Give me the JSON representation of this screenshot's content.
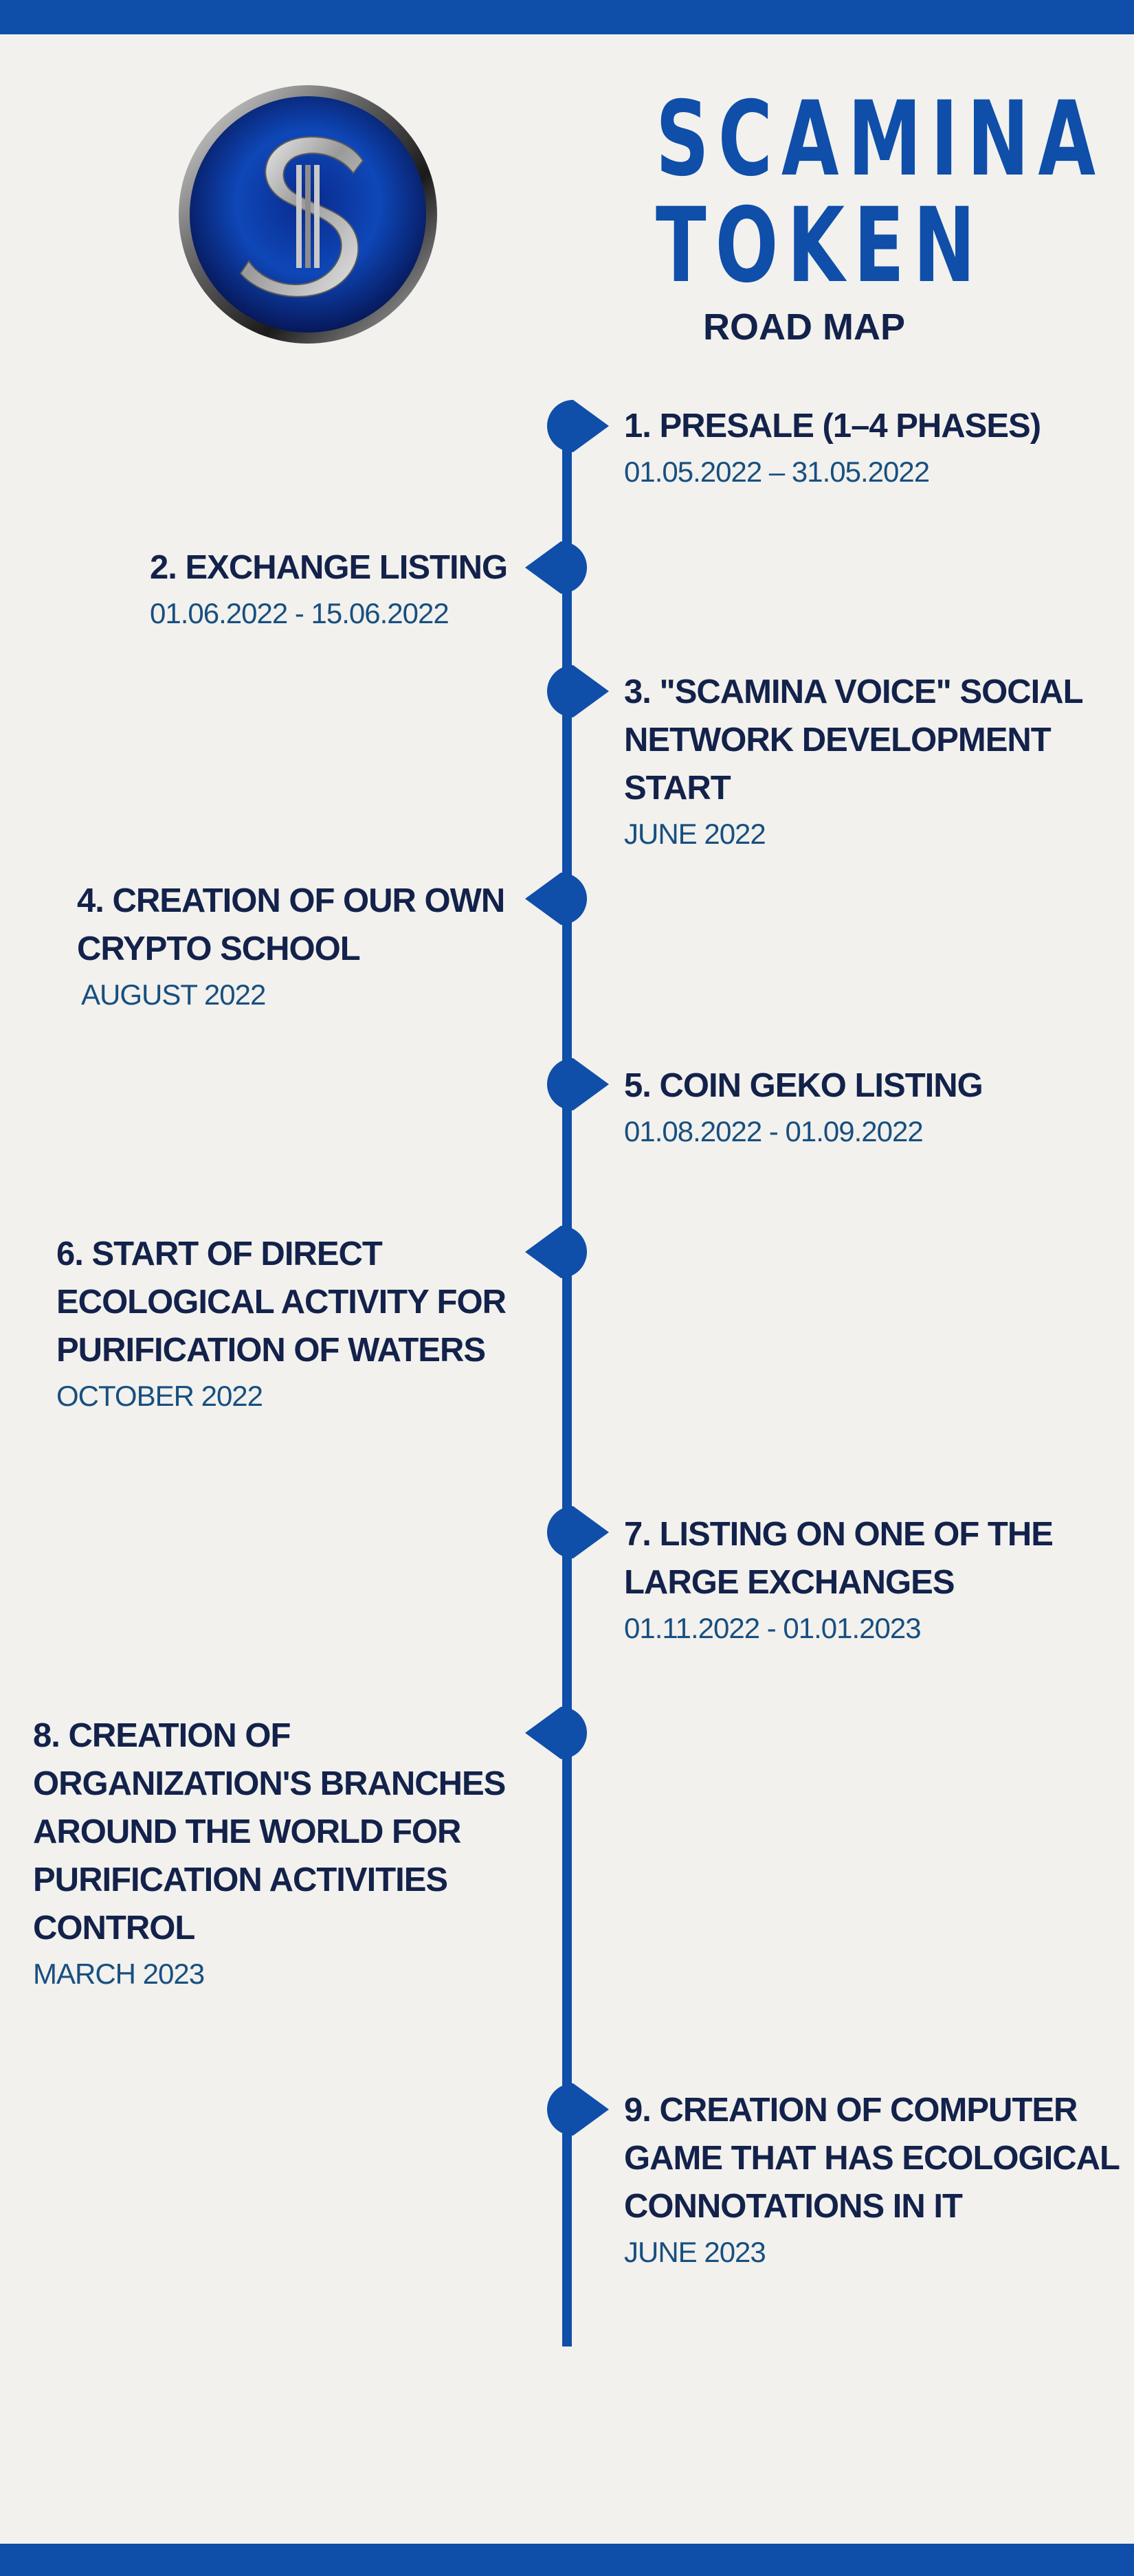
{
  "header": {
    "title_line1": "SCAMINA",
    "title_line2": "TOKEN",
    "subtitle": "ROAD MAP",
    "logo_icon": "scamina-s-coin-logo"
  },
  "colors": {
    "brand_blue": "#0f4ea9",
    "heading_navy": "#13224b",
    "date_blue": "#184f80",
    "background": "#f2f1ed"
  },
  "milestones": [
    {
      "title": "1. PRESALE (1–4 PHASES)",
      "date": "01.05.2022 – 31.05.2022"
    },
    {
      "title": "2. EXCHANGE LISTING",
      "date": "01.06.2022 - 15.06.2022"
    },
    {
      "title": "3. \"SCAMINA VOICE\" SOCIAL NETWORK DEVELOPMENT START",
      "date": "JUNE 2022"
    },
    {
      "title": "4. CREATION OF OUR OWN CRYPTO SCHOOL",
      "date": "AUGUST 2022"
    },
    {
      "title": "5. COIN GEKO LISTING",
      "date": "01.08.2022 - 01.09.2022"
    },
    {
      "title": "6. START OF DIRECT ECOLOGICAL ACTIVITY FOR PURIFICATION OF WATERS",
      "date": "OCTOBER 2022"
    },
    {
      "title": "7. LISTING ON ONE OF THE LARGE EXCHANGES",
      "date": "01.11.2022 - 01.01.2023"
    },
    {
      "title": "8. CREATION OF ORGANIZATION'S BRANCHES AROUND THE WORLD FOR PURIFICATION ACTIVITIES CONTROL",
      "date": "MARCH 2023"
    },
    {
      "title": "9. CREATION OF COMPUTER GAME THAT HAS ECOLOGICAL CONNOTATIONS IN IT",
      "date": "JUNE 2023"
    }
  ]
}
